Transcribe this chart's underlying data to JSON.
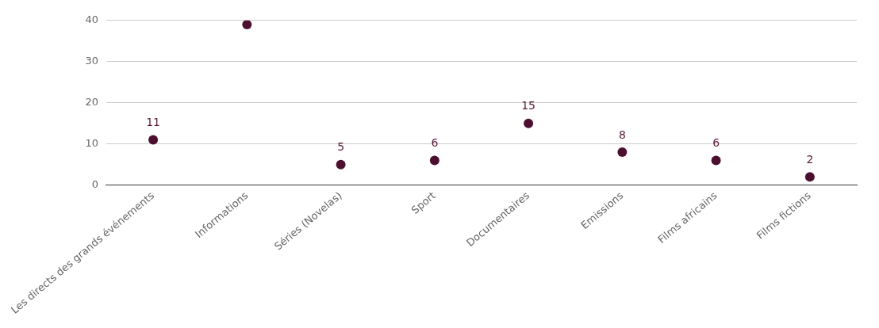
{
  "chart_data": {
    "type": "scatter",
    "categories": [
      "Les directs des grands événements",
      "Informations",
      "Séries (Novelas)",
      "Sport",
      "Documentaires",
      "Emissions",
      "Films africains",
      "Films fictions"
    ],
    "values": [
      11,
      39,
      5,
      6,
      15,
      8,
      6,
      2
    ],
    "value_labels": [
      "11",
      null,
      "5",
      "6",
      "15",
      "8",
      "6",
      "2"
    ],
    "color": "#4d0f30",
    "marker": "circle",
    "ylim": [
      0,
      40
    ],
    "yticks": [
      0,
      10,
      20,
      30,
      40
    ],
    "grid": "y",
    "legend": false
  }
}
